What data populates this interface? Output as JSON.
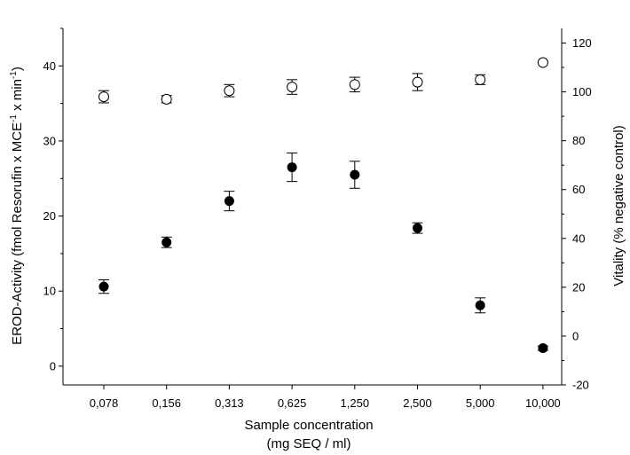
{
  "chart_data": {
    "type": "scatter",
    "categories": [
      "0,078",
      "0,156",
      "0,313",
      "0,625",
      "1,250",
      "2,500",
      "5,000",
      "10,000"
    ],
    "xlabel_line1": "Sample concentration",
    "xlabel_line2": "(mg SEQ / ml)",
    "ylabel_left_pre": "EROD-Activity (fmol Resorufin x MCE",
    "ylabel_left_sup1": "-1",
    "ylabel_left_mid": " x min",
    "ylabel_left_sup2": "-1",
    "ylabel_left_post": ")",
    "ylabel_right": "Vitality (% negative control)",
    "left_axis": {
      "min": -2.5,
      "max": 45,
      "ticks": [
        0,
        10,
        20,
        30,
        40
      ]
    },
    "right_axis": {
      "min": -20,
      "max": 126,
      "ticks": [
        -20,
        0,
        20,
        40,
        60,
        80,
        100,
        120
      ]
    },
    "grid": false,
    "series": [
      {
        "axis": "left",
        "marker": "filled-circle",
        "values": [
          10.6,
          16.5,
          22.0,
          26.5,
          25.5,
          18.4,
          8.1,
          2.4
        ],
        "errors": [
          0.9,
          0.7,
          1.3,
          1.9,
          1.8,
          0.7,
          1.0,
          0.3
        ]
      },
      {
        "axis": "right",
        "marker": "open-circle",
        "values": [
          98,
          97,
          100.5,
          102,
          103,
          104,
          105,
          112
        ],
        "errors": [
          2.5,
          1.5,
          2.5,
          3,
          3,
          3.5,
          2,
          0
        ]
      }
    ]
  }
}
